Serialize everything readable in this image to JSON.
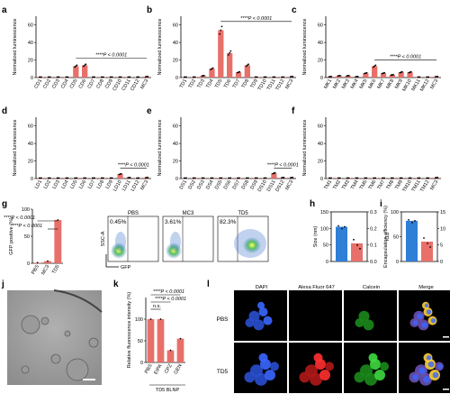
{
  "colors": {
    "bar": "#e8706a",
    "bar_dark": "#c9403a",
    "blue": "#2f7fd6",
    "grid": "#999999"
  },
  "chart_data": [
    {
      "panel": "a",
      "type": "bar",
      "ylabel": "Normalized luminescence",
      "categories": [
        "CD1",
        "CD2",
        "CD3",
        "CD4",
        "CD5",
        "CD6",
        "CD7",
        "CD8",
        "CD9",
        "CD10",
        "CD11",
        "CD12",
        "MC3"
      ],
      "values": [
        0.5,
        0.5,
        0.5,
        0.5,
        13,
        14,
        0.5,
        0.5,
        0.5,
        0.5,
        0.5,
        0.5,
        1
      ],
      "ylim": [
        0,
        70
      ],
      "yticks": [
        0,
        20,
        40,
        60
      ],
      "annotation": {
        "text": "****P < 0.0001",
        "from": 4,
        "to": 12,
        "y": 22
      }
    },
    {
      "panel": "b",
      "type": "bar",
      "ylabel": "Normalized luminescence",
      "categories": [
        "TD1",
        "TD2",
        "TD3",
        "TD4",
        "TD5",
        "TD6",
        "TD7",
        "TD8",
        "TD9",
        "TD10",
        "TD11",
        "TD12",
        "MC3"
      ],
      "values": [
        0.5,
        0.5,
        2,
        10,
        54,
        28,
        6,
        14,
        0.5,
        0.5,
        0.5,
        0.5,
        1
      ],
      "ylim": [
        0,
        70
      ],
      "yticks": [
        0,
        20,
        40,
        60
      ],
      "annotation": {
        "text": "****P < 0.0001",
        "from": 4,
        "to": 12,
        "y": 64
      }
    },
    {
      "panel": "c",
      "type": "bar",
      "ylabel": "Normalized luminescence",
      "categories": [
        "MK1",
        "MK2",
        "MK3",
        "MK4",
        "MK5",
        "MK6",
        "MK7",
        "MK8",
        "MK9",
        "MK10",
        "MK11",
        "MK12",
        "MC3"
      ],
      "values": [
        1,
        2,
        2,
        1,
        5,
        13,
        5,
        3,
        6,
        6,
        0.5,
        0.5,
        1
      ],
      "ylim": [
        0,
        70
      ],
      "yticks": [
        0,
        20,
        40,
        60
      ],
      "annotation": {
        "text": "****P < 0.0001",
        "from": 5,
        "to": 12,
        "y": 20
      }
    },
    {
      "panel": "d",
      "type": "bar",
      "ylabel": "Normalized luminescence",
      "categories": [
        "LD1",
        "LD2",
        "LD3",
        "LD4",
        "LD5",
        "LD6",
        "LD7",
        "LD8",
        "LD9",
        "LD10",
        "LD11",
        "LD12",
        "MC3"
      ],
      "values": [
        0.5,
        0.5,
        0.5,
        0.5,
        0.5,
        0.5,
        0.5,
        0.5,
        0.5,
        5,
        1,
        0.5,
        1
      ],
      "ylim": [
        0,
        70
      ],
      "yticks": [
        0,
        20,
        40,
        60
      ],
      "annotation": {
        "text": "****P < 0.0001",
        "from": 9,
        "to": 12,
        "y": 12
      }
    },
    {
      "panel": "e",
      "type": "bar",
      "ylabel": "Normalized luminescence",
      "categories": [
        "DS1",
        "DS2",
        "DS3",
        "DS4",
        "DS5",
        "DS6",
        "DS7",
        "DS8",
        "DS9",
        "DS10",
        "DS11",
        "DS12",
        "MC3"
      ],
      "values": [
        0.5,
        0.5,
        0.5,
        0.5,
        0.5,
        0.5,
        0.5,
        0.5,
        0.5,
        0.5,
        6,
        1,
        1
      ],
      "ylim": [
        0,
        70
      ],
      "yticks": [
        0,
        20,
        40,
        60
      ],
      "annotation": {
        "text": "****P < 0.0001",
        "from": 10,
        "to": 12,
        "y": 12
      }
    },
    {
      "panel": "f",
      "type": "bar",
      "ylabel": "Normalized luminescence",
      "categories": [
        "TM1",
        "TM2",
        "TM3",
        "TM4",
        "TM5",
        "TM6",
        "TM7",
        "TM8",
        "TM9",
        "TM10",
        "TM11",
        "TM12",
        "MC3"
      ],
      "values": [
        0.5,
        0.5,
        0.5,
        0.5,
        0.5,
        0.5,
        0.5,
        0.5,
        0.5,
        0.5,
        0.5,
        0.5,
        1
      ],
      "ylim": [
        0,
        70
      ],
      "yticks": [
        0,
        20,
        40,
        60
      ]
    },
    {
      "panel": "g",
      "type": "bar",
      "ylabel": "GFP positive (%)",
      "categories": [
        "PBS",
        "MC3",
        "TD5"
      ],
      "values": [
        1,
        4,
        80
      ],
      "ylim": [
        0,
        100
      ],
      "yticks": [
        0,
        50,
        100
      ],
      "annotations": [
        "****P < 0.0001",
        "****P < 0.0001"
      ],
      "flow_panels": [
        {
          "title": "PBS",
          "percent": "0.45%"
        },
        {
          "title": "MC3",
          "percent": "3.61%"
        },
        {
          "title": "TD5",
          "percent": "82.3%"
        }
      ],
      "flow_axes": {
        "y": "SSC-A",
        "x": "GFP"
      }
    },
    {
      "panel": "h",
      "type": "bar",
      "ylabel_left": "Size (nm)",
      "ylabel_right": "PDI",
      "values": {
        "size": 105,
        "pdi": 0.11
      },
      "left_ticks": [
        0,
        50,
        100,
        150
      ],
      "right_ticks": [
        "0.0",
        "0.1",
        "0.2",
        "0.3"
      ]
    },
    {
      "panel": "i",
      "type": "bar",
      "ylabel_left": "Encapsulation efficiency (%)",
      "ylabel_right": "Zeta potential (mV)",
      "values": {
        "encapsulation": 82,
        "zeta": 6
      },
      "left_ticks": [
        0,
        50,
        100
      ],
      "right_ticks": [
        "0",
        "5",
        "10",
        "15"
      ]
    },
    {
      "panel": "k",
      "type": "bar",
      "ylabel": "Relative fluorescence intensity (%)",
      "categories": [
        "PBS",
        "EIPA",
        "CPZ",
        "GEN"
      ],
      "values": [
        100,
        100,
        28,
        55
      ],
      "ylim": [
        0,
        150
      ],
      "yticks": [
        0,
        50,
        100
      ],
      "xlabel": "TD5 BLNP",
      "annotations": [
        "****P < 0.0001",
        "****P < 0.0001",
        "n.s."
      ]
    }
  ],
  "panel_j": {
    "label": "j"
  },
  "panel_l": {
    "label": "l",
    "columns": [
      "DAPI",
      "Alexa Fluor 647",
      "Calcein",
      "Merge"
    ],
    "rows": [
      "PBS",
      "TD5"
    ]
  }
}
